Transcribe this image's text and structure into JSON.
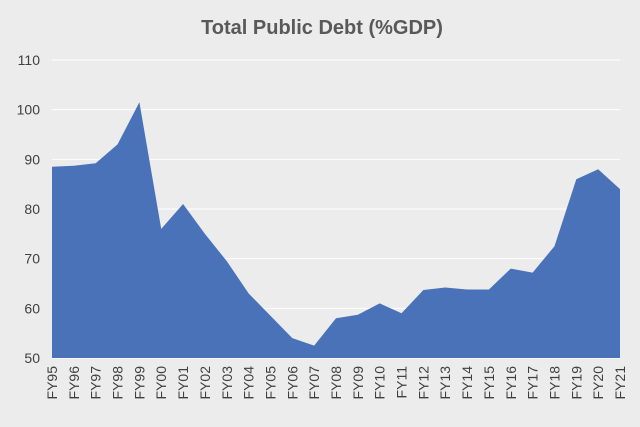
{
  "chart_data": {
    "type": "area",
    "title": "Total Public Debt (%GDP)",
    "xlabel": "",
    "ylabel": "",
    "ylim": [
      50,
      110
    ],
    "yticks": [
      50,
      60,
      70,
      80,
      90,
      100,
      110
    ],
    "grid": true,
    "legend": "none",
    "color": "#4a72b9",
    "categories": [
      "FY95",
      "FY96",
      "FY97",
      "FY98",
      "FY99",
      "FY00",
      "FY01",
      "FY02",
      "FY03",
      "FY04",
      "FY05",
      "FY06",
      "FY07",
      "FY08",
      "FY09",
      "FY10",
      "FY11",
      "FY12",
      "FY13",
      "FY14",
      "FY15",
      "FY16",
      "FY17",
      "FY18",
      "FY19",
      "FY20",
      "FY21"
    ],
    "values": [
      88.5,
      88.7,
      89.2,
      93,
      101.5,
      76,
      81,
      75,
      69.5,
      63,
      58.5,
      54,
      52.5,
      58,
      58.7,
      61,
      59,
      63.7,
      64.2,
      63.8,
      63.8,
      68,
      67.2,
      72.5,
      86,
      88,
      84
    ]
  }
}
